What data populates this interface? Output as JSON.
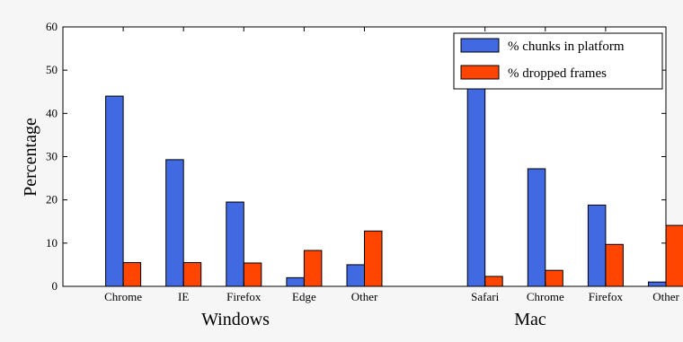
{
  "chart_data": {
    "type": "bar",
    "categories": [
      "Chrome",
      "IE",
      "Firefox",
      "Edge",
      "Other",
      "Safari",
      "Chrome",
      "Firefox",
      "Other"
    ],
    "groups": [
      {
        "label": "Windows",
        "categories": [
          "Chrome",
          "IE",
          "Firefox",
          "Edge",
          "Other"
        ]
      },
      {
        "label": "Mac",
        "categories": [
          "Safari",
          "Chrome",
          "Firefox",
          "Other"
        ]
      }
    ],
    "series": [
      {
        "name": "% chunks in platform",
        "color": "#4169e1",
        "values": [
          44,
          29.3,
          19.5,
          2,
          5,
          53,
          27.2,
          18.8,
          1
        ]
      },
      {
        "name": "% dropped frames",
        "color": "#ff4500",
        "values": [
          5.5,
          5.5,
          5.4,
          8.3,
          12.8,
          2.3,
          3.7,
          9.7,
          14.1
        ]
      }
    ],
    "ylabel": "Percentage",
    "ylim": [
      0,
      60
    ],
    "yticks": [
      0,
      10,
      20,
      30,
      40,
      50,
      60
    ],
    "legend_position": "top-right",
    "grid": false
  }
}
